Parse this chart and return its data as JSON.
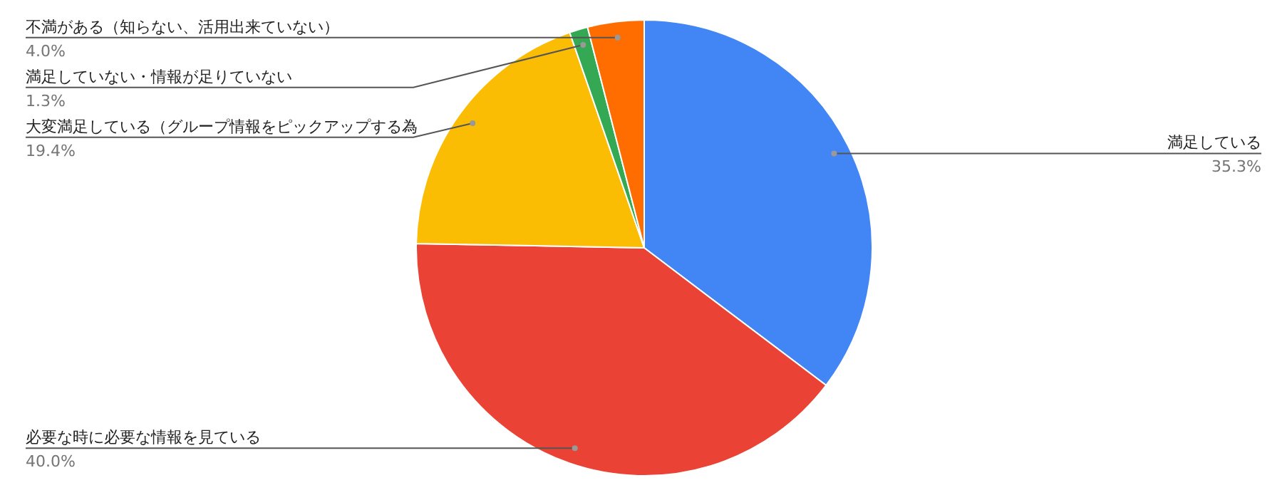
{
  "chart_data": {
    "type": "pie",
    "categories": [
      "満足している",
      "必要な時に必要な情報を見ている",
      "大変満足している（グループ情報をピックアップする為",
      "満足していない・情報が足りていない",
      "不満がある（知らない、活用出来ていない）"
    ],
    "values": [
      35.3,
      40.0,
      19.4,
      1.3,
      4.0
    ],
    "colors": [
      "#4285f4",
      "#ea4335",
      "#fbbc04",
      "#34a853",
      "#ff6d01"
    ],
    "value_labels": [
      "35.3%",
      "40.0%",
      "19.4%",
      "1.3%",
      "4.0%"
    ]
  }
}
